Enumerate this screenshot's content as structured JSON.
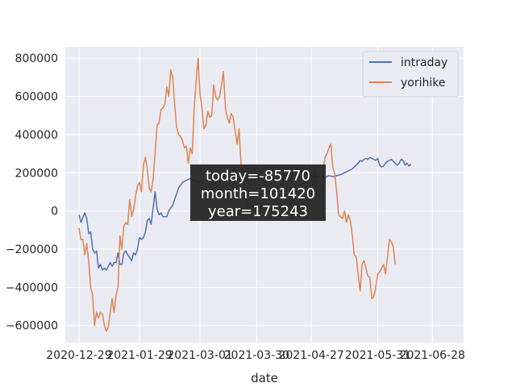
{
  "chart_data": {
    "type": "line",
    "xlabel": "date",
    "ylabel": "",
    "xlim": [
      "2020-12-22",
      "2021-07-14"
    ],
    "ylim": [
      -690000,
      860000
    ],
    "grid": true,
    "legend_position": "top-right",
    "x_ticks": [
      "2020-12-29",
      "2021-01-29",
      "2021-03-01",
      "2021-03-30",
      "2021-04-27",
      "2021-05-31",
      "2021-06-28"
    ],
    "y_ticks": [
      -600000,
      -400000,
      -200000,
      0,
      200000,
      400000,
      600000,
      800000
    ],
    "y_tick_labels": [
      "−600000",
      "−400000",
      "−200000",
      "0",
      "200000",
      "400000",
      "600000",
      "800000"
    ],
    "colors": {
      "intraday": "#4c72b0",
      "yorihike": "#dd8452",
      "background": "#eaeaf2",
      "grid": "#ffffff",
      "annotation_box": "#262626"
    },
    "series": [
      {
        "name": "intraday",
        "points": [
          [
            "2020-12-29",
            -20000
          ],
          [
            "2020-12-30",
            -60000
          ],
          [
            "2021-01-01",
            -10000
          ],
          [
            "2021-01-02",
            -40000
          ],
          [
            "2021-01-03",
            -120000
          ],
          [
            "2021-01-04",
            -110000
          ],
          [
            "2021-01-05",
            -200000
          ],
          [
            "2021-01-06",
            -220000
          ],
          [
            "2021-01-07",
            -210000
          ],
          [
            "2021-01-08",
            -300000
          ],
          [
            "2021-01-09",
            -280000
          ],
          [
            "2021-01-10",
            -310000
          ],
          [
            "2021-01-11",
            -300000
          ],
          [
            "2021-01-12",
            -310000
          ],
          [
            "2021-01-14",
            -270000
          ],
          [
            "2021-01-15",
            -290000
          ],
          [
            "2021-01-16",
            -270000
          ],
          [
            "2021-01-17",
            -270000
          ],
          [
            "2021-01-18",
            -220000
          ],
          [
            "2021-01-19",
            -280000
          ],
          [
            "2021-01-20",
            -280000
          ],
          [
            "2021-01-21",
            -220000
          ],
          [
            "2021-01-22",
            -210000
          ],
          [
            "2021-01-23",
            -230000
          ],
          [
            "2021-01-25",
            -260000
          ],
          [
            "2021-01-26",
            -220000
          ],
          [
            "2021-01-27",
            -230000
          ],
          [
            "2021-01-28",
            -200000
          ],
          [
            "2021-01-29",
            -140000
          ],
          [
            "2021-01-30",
            -150000
          ],
          [
            "2021-01-31",
            -140000
          ],
          [
            "2021-02-01",
            -110000
          ],
          [
            "2021-02-02",
            -50000
          ],
          [
            "2021-02-03",
            -40000
          ],
          [
            "2021-02-04",
            -70000
          ],
          [
            "2021-02-05",
            20000
          ],
          [
            "2021-02-06",
            100000
          ],
          [
            "2021-02-07",
            10000
          ],
          [
            "2021-02-08",
            -20000
          ],
          [
            "2021-02-09",
            -10000
          ],
          [
            "2021-02-10",
            -30000
          ],
          [
            "2021-02-12",
            -30000
          ],
          [
            "2021-02-13",
            0
          ],
          [
            "2021-02-15",
            30000
          ],
          [
            "2021-02-18",
            120000
          ],
          [
            "2021-02-20",
            150000
          ],
          [
            "2021-02-22",
            160000
          ],
          [
            "2021-02-24",
            170000
          ],
          [
            "2021-02-26",
            160000
          ],
          [
            "2021-03-01",
            150000
          ],
          [
            "2021-03-03",
            170000
          ],
          [
            "2021-03-05",
            160000
          ],
          [
            "2021-03-07",
            140000
          ],
          [
            "2021-03-10",
            150000
          ],
          [
            "2021-03-13",
            160000
          ],
          [
            "2021-03-16",
            170000
          ],
          [
            "2021-03-19",
            160000
          ],
          [
            "2021-03-22",
            165000
          ],
          [
            "2021-03-25",
            160000
          ],
          [
            "2021-03-28",
            170000
          ],
          [
            "2021-03-31",
            165000
          ],
          [
            "2021-04-03",
            160000
          ],
          [
            "2021-04-06",
            170000
          ],
          [
            "2021-04-09",
            175000
          ],
          [
            "2021-04-12",
            180000
          ],
          [
            "2021-04-15",
            190000
          ],
          [
            "2021-04-18",
            200000
          ],
          [
            "2021-04-21",
            210000
          ],
          [
            "2021-04-23",
            205000
          ],
          [
            "2021-04-26",
            190000
          ],
          [
            "2021-04-29",
            180000
          ],
          [
            "2021-05-02",
            180000
          ],
          [
            "2021-05-04",
            175000
          ],
          [
            "2021-05-06",
            185000
          ],
          [
            "2021-05-08",
            180000
          ],
          [
            "2021-05-10",
            185000
          ],
          [
            "2021-05-12",
            190000
          ],
          [
            "2021-05-14",
            200000
          ],
          [
            "2021-05-16",
            210000
          ],
          [
            "2021-05-18",
            220000
          ],
          [
            "2021-05-19",
            230000
          ],
          [
            "2021-05-20",
            240000
          ],
          [
            "2021-05-21",
            250000
          ],
          [
            "2021-05-22",
            265000
          ],
          [
            "2021-05-23",
            260000
          ],
          [
            "2021-05-24",
            270000
          ],
          [
            "2021-05-25",
            275000
          ],
          [
            "2021-05-26",
            270000
          ],
          [
            "2021-05-27",
            280000
          ],
          [
            "2021-05-28",
            275000
          ],
          [
            "2021-05-29",
            270000
          ],
          [
            "2021-05-30",
            265000
          ],
          [
            "2021-05-31",
            275000
          ],
          [
            "2021-06-01",
            240000
          ],
          [
            "2021-06-02",
            230000
          ],
          [
            "2021-06-03",
            235000
          ],
          [
            "2021-06-04",
            250000
          ],
          [
            "2021-06-05",
            260000
          ],
          [
            "2021-06-06",
            265000
          ],
          [
            "2021-06-07",
            270000
          ],
          [
            "2021-06-08",
            260000
          ],
          [
            "2021-06-09",
            250000
          ],
          [
            "2021-06-10",
            240000
          ],
          [
            "2021-06-11",
            250000
          ],
          [
            "2021-06-12",
            270000
          ],
          [
            "2021-06-13",
            265000
          ],
          [
            "2021-06-14",
            240000
          ],
          [
            "2021-06-15",
            250000
          ],
          [
            "2021-06-16",
            235000
          ],
          [
            "2021-06-17",
            245000
          ]
        ]
      },
      {
        "name": "yorihike",
        "points": [
          [
            "2020-12-29",
            -90000
          ],
          [
            "2020-12-30",
            -150000
          ],
          [
            "2020-12-31",
            -150000
          ],
          [
            "2021-01-01",
            -230000
          ],
          [
            "2021-01-02",
            -170000
          ],
          [
            "2021-01-03",
            -270000
          ],
          [
            "2021-01-04",
            -400000
          ],
          [
            "2021-01-05",
            -440000
          ],
          [
            "2021-01-06",
            -600000
          ],
          [
            "2021-01-07",
            -530000
          ],
          [
            "2021-01-08",
            -560000
          ],
          [
            "2021-01-09",
            -530000
          ],
          [
            "2021-01-10",
            -540000
          ],
          [
            "2021-01-11",
            -600000
          ],
          [
            "2021-01-12",
            -630000
          ],
          [
            "2021-01-13",
            -610000
          ],
          [
            "2021-01-14",
            -530000
          ],
          [
            "2021-01-15",
            -460000
          ],
          [
            "2021-01-16",
            -530000
          ],
          [
            "2021-01-17",
            -440000
          ],
          [
            "2021-01-18",
            -400000
          ],
          [
            "2021-01-19",
            -130000
          ],
          [
            "2021-01-20",
            -200000
          ],
          [
            "2021-01-21",
            -80000
          ],
          [
            "2021-01-22",
            -60000
          ],
          [
            "2021-01-23",
            -70000
          ],
          [
            "2021-01-24",
            60000
          ],
          [
            "2021-01-25",
            -30000
          ],
          [
            "2021-01-26",
            10000
          ],
          [
            "2021-01-27",
            80000
          ],
          [
            "2021-01-28",
            130000
          ],
          [
            "2021-01-29",
            150000
          ],
          [
            "2021-01-30",
            100000
          ],
          [
            "2021-01-31",
            240000
          ],
          [
            "2021-02-01",
            280000
          ],
          [
            "2021-02-02",
            220000
          ],
          [
            "2021-02-03",
            120000
          ],
          [
            "2021-02-04",
            100000
          ],
          [
            "2021-02-05",
            170000
          ],
          [
            "2021-02-06",
            300000
          ],
          [
            "2021-02-07",
            450000
          ],
          [
            "2021-02-08",
            460000
          ],
          [
            "2021-02-09",
            530000
          ],
          [
            "2021-02-10",
            540000
          ],
          [
            "2021-02-11",
            560000
          ],
          [
            "2021-02-12",
            650000
          ],
          [
            "2021-02-13",
            600000
          ],
          [
            "2021-02-14",
            740000
          ],
          [
            "2021-02-15",
            700000
          ],
          [
            "2021-02-16",
            560000
          ],
          [
            "2021-02-17",
            440000
          ],
          [
            "2021-02-18",
            400000
          ],
          [
            "2021-02-19",
            390000
          ],
          [
            "2021-02-20",
            370000
          ],
          [
            "2021-02-21",
            330000
          ],
          [
            "2021-02-22",
            340000
          ],
          [
            "2021-02-23",
            250000
          ],
          [
            "2021-02-24",
            330000
          ],
          [
            "2021-02-25",
            300000
          ],
          [
            "2021-02-26",
            530000
          ],
          [
            "2021-02-27",
            680000
          ],
          [
            "2021-02-28",
            800000
          ],
          [
            "2021-03-01",
            610000
          ],
          [
            "2021-03-02",
            540000
          ],
          [
            "2021-03-03",
            430000
          ],
          [
            "2021-03-04",
            450000
          ],
          [
            "2021-03-05",
            520000
          ],
          [
            "2021-03-06",
            490000
          ],
          [
            "2021-03-07",
            500000
          ],
          [
            "2021-03-08",
            660000
          ],
          [
            "2021-03-09",
            600000
          ],
          [
            "2021-03-10",
            580000
          ],
          [
            "2021-03-11",
            600000
          ],
          [
            "2021-03-12",
            660000
          ],
          [
            "2021-03-13",
            730000
          ],
          [
            "2021-03-14",
            540000
          ],
          [
            "2021-03-15",
            490000
          ],
          [
            "2021-03-16",
            460000
          ],
          [
            "2021-03-17",
            510000
          ],
          [
            "2021-03-18",
            490000
          ],
          [
            "2021-03-19",
            420000
          ],
          [
            "2021-03-20",
            350000
          ],
          [
            "2021-03-21",
            430000
          ],
          [
            "2021-03-22",
            250000
          ],
          [
            "2021-03-23",
            200000
          ],
          [
            "2021-03-24",
            100000
          ],
          [
            "2021-03-25",
            40000
          ],
          [
            "2021-03-26",
            0
          ],
          [
            "2021-03-27",
            50000
          ],
          [
            "2021-03-28",
            0
          ],
          [
            "2021-04-27",
            70000
          ],
          [
            "2021-04-28",
            150000
          ],
          [
            "2021-04-29",
            230000
          ],
          [
            "2021-04-30",
            90000
          ],
          [
            "2021-05-01",
            70000
          ],
          [
            "2021-05-02",
            170000
          ],
          [
            "2021-05-03",
            200000
          ],
          [
            "2021-05-04",
            280000
          ],
          [
            "2021-05-05",
            300000
          ],
          [
            "2021-05-06",
            330000
          ],
          [
            "2021-05-07",
            350000
          ],
          [
            "2021-05-08",
            230000
          ],
          [
            "2021-05-09",
            190000
          ],
          [
            "2021-05-10",
            100000
          ],
          [
            "2021-05-11",
            -20000
          ],
          [
            "2021-05-12",
            -30000
          ],
          [
            "2021-05-13",
            -40000
          ],
          [
            "2021-05-14",
            0
          ],
          [
            "2021-05-15",
            -60000
          ],
          [
            "2021-05-16",
            -20000
          ],
          [
            "2021-05-17",
            -50000
          ],
          [
            "2021-05-18",
            -130000
          ],
          [
            "2021-05-19",
            -230000
          ],
          [
            "2021-05-20",
            -240000
          ],
          [
            "2021-05-21",
            -330000
          ],
          [
            "2021-05-22",
            -420000
          ],
          [
            "2021-05-23",
            -280000
          ],
          [
            "2021-05-24",
            -260000
          ],
          [
            "2021-05-25",
            -300000
          ],
          [
            "2021-05-26",
            -340000
          ],
          [
            "2021-05-27",
            -350000
          ],
          [
            "2021-05-28",
            -460000
          ],
          [
            "2021-05-29",
            -450000
          ],
          [
            "2021-05-30",
            -400000
          ],
          [
            "2021-05-31",
            -330000
          ],
          [
            "2021-06-01",
            -320000
          ],
          [
            "2021-06-02",
            -300000
          ],
          [
            "2021-06-03",
            -280000
          ],
          [
            "2021-06-04",
            -330000
          ],
          [
            "2021-06-05",
            -240000
          ],
          [
            "2021-06-06",
            -150000
          ],
          [
            "2021-06-07",
            -160000
          ],
          [
            "2021-06-08",
            -190000
          ],
          [
            "2021-06-09",
            -280000
          ]
        ]
      }
    ],
    "annotation": {
      "lines": [
        "today=-85770",
        "month=101420",
        "year=175243"
      ]
    }
  }
}
